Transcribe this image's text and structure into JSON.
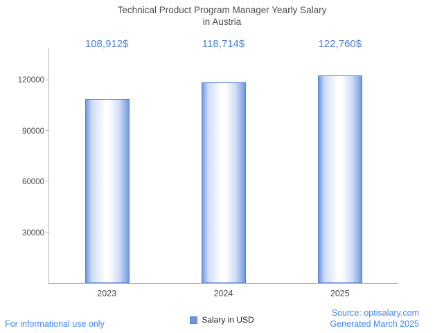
{
  "chart": {
    "title_line1": "Technical Product Program Manager Yearly Salary",
    "title_line2": "in Austria"
  },
  "chart_data": {
    "type": "bar",
    "title": "Technical Product Program Manager Yearly Salary in Austria",
    "categories": [
      "2023",
      "2024",
      "2025"
    ],
    "values": [
      108912,
      118714,
      122760
    ],
    "value_labels": [
      "108,912$",
      "118,714$",
      "122,760$"
    ],
    "series": [
      {
        "name": "Salary in USD",
        "values": [
          108912,
          118714,
          122760
        ]
      }
    ],
    "xlabel": "",
    "ylabel": "",
    "ylim": [
      0,
      138800
    ],
    "yticks": [
      30000,
      60000,
      90000,
      120000
    ],
    "grid": false,
    "legend_position": "bottom"
  },
  "legend": {
    "label": "Salary in USD"
  },
  "footer": {
    "disclaimer": "For informational use only",
    "source": "Source: optisalary.com",
    "generated": "Generated March 2025"
  },
  "colors": {
    "value_label_blue": "#4b80d6",
    "footer_blue": "#4285f4",
    "bar_border": "#5181d0",
    "bar_edge_fill": "#6f9ae2",
    "title_gray": "#4c4c4c",
    "axis_gray": "#b5b5b5"
  }
}
